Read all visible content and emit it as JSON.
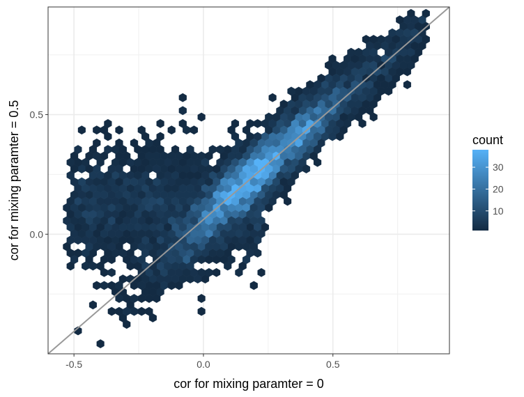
{
  "chart_data": {
    "type": "heatmap",
    "subtype": "hexbin",
    "title": "",
    "xlabel": "cor for mixing paramter = 0",
    "ylabel": "cor for mixing paramter = 0.5",
    "xlim": [
      -0.6,
      0.95
    ],
    "ylim": [
      -0.5,
      0.95
    ],
    "x_ticks": [
      -0.5,
      0.0,
      0.5
    ],
    "x_tick_labels": [
      "-0.5",
      "0.0",
      "0.5"
    ],
    "y_ticks": [
      0.0,
      0.5
    ],
    "y_tick_labels": [
      "0.0",
      "0.5"
    ],
    "grid": true,
    "reference_line": {
      "slope": 1,
      "intercept": 0,
      "color": "#999999"
    },
    "legend": {
      "title": "count",
      "position": "right",
      "range": [
        1,
        38
      ],
      "ticks": [
        10,
        20,
        30
      ],
      "tick_labels": [
        "10",
        "20",
        "30"
      ],
      "colors": {
        "low": "#132B43",
        "high": "#56B1F7"
      }
    },
    "notes": "Hexagonal-binned counts of ~1,000s of points concentrated along the y = x diagonal, densest near (0.2, 0.25)."
  }
}
